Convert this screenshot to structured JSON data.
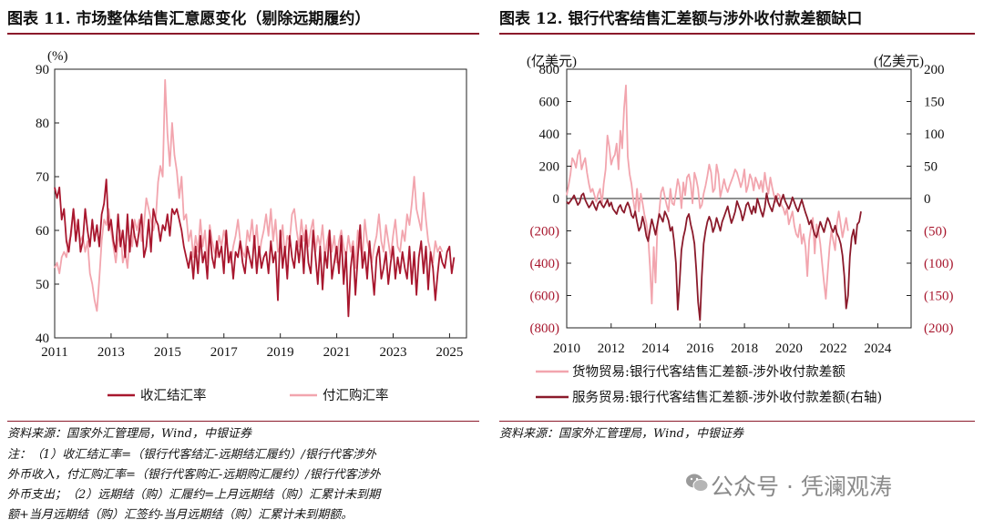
{
  "left_panel": {
    "title": "图表 11. 市场整体结售汇意愿变化（剔除远期履约）",
    "source": "资料来源：国家外汇管理局，Wind，中银证券",
    "notes": [
      "注：（1）收汇结汇率=（银行代客结汇-远期结汇履约）/银行代客涉外",
      "外币收入，付汇购汇率=（银行代客购汇-远期购汇履约）/银行代客涉外",
      "外币支出；（2）远期结（购）汇履约=上月远期结（购）汇累计未到期",
      "额+当月远期结（购）汇签约-当月远期结（购）汇累计未到期额。"
    ]
  },
  "right_panel": {
    "title": "图表 12. 银行代客结售汇差额与涉外收付款差额缺口",
    "source": "资料来源：国家外汇管理局，Wind，中银证券"
  },
  "watermark": {
    "text": "公众号 · 凭澜观涛",
    "icon": "wechat-icon"
  },
  "chart_data": [
    {
      "type": "line",
      "title": "图表 11. 市场整体结售汇意愿变化（剔除远期履约）",
      "unit_label": "(%)",
      "x_ticks": [
        "2011",
        "2013",
        "2015",
        "2017",
        "2019",
        "2021",
        "2023",
        "2025"
      ],
      "y_ticks": [
        40,
        50,
        60,
        70,
        80,
        90
      ],
      "ylim": [
        40,
        90
      ],
      "xlim": [
        2011,
        2025.6
      ],
      "grid": false,
      "legend_position": "bottom",
      "series": [
        {
          "name": "收汇结汇率",
          "color": "#a8172e",
          "x_start": 2011.0,
          "x_step": 0.0833,
          "values": [
            68,
            66,
            68,
            62,
            64,
            58,
            56,
            60,
            64,
            58,
            62,
            56,
            58,
            64,
            60,
            57,
            62,
            58,
            61,
            57,
            63,
            65,
            69.5,
            60,
            62,
            58,
            56,
            63,
            57,
            60,
            55,
            63,
            56,
            62,
            59,
            57,
            60,
            63,
            55,
            57,
            62,
            56,
            64,
            62,
            61,
            58,
            61,
            60,
            63,
            59,
            64,
            63,
            64,
            62,
            60,
            57,
            55,
            53,
            56,
            51,
            57,
            52,
            59,
            54,
            56,
            51,
            60,
            55,
            53,
            58,
            55,
            57,
            52,
            60,
            54,
            56,
            51,
            56,
            55,
            58,
            54,
            52,
            57,
            55,
            53,
            59,
            52,
            57,
            53,
            55,
            56,
            52,
            58,
            54,
            56,
            47,
            60,
            53,
            57,
            51,
            59,
            55,
            53,
            58,
            54,
            59,
            52,
            60,
            54,
            52,
            60,
            55,
            50,
            57,
            49,
            56,
            53,
            60,
            51,
            54,
            57,
            52,
            59,
            50,
            56,
            44,
            53,
            57,
            48,
            55,
            61,
            53,
            56,
            51,
            58,
            53,
            48,
            55,
            57,
            51,
            53,
            56,
            50,
            54,
            57,
            51,
            55,
            52,
            56,
            53,
            51,
            57,
            50,
            56,
            48,
            55,
            58,
            52,
            57,
            49,
            56,
            53,
            47,
            52,
            56,
            54,
            53,
            56,
            57,
            52,
            55
          ]
        },
        {
          "name": "付汇购汇率",
          "color": "#f2a5ae",
          "x_start": 2011.0,
          "x_step": 0.0833,
          "values": [
            53,
            54,
            52,
            55,
            56,
            55,
            58,
            59,
            64,
            61,
            60,
            58,
            59,
            56,
            58,
            52,
            50,
            47,
            45,
            51,
            58,
            62,
            61,
            64,
            60,
            57,
            54,
            58,
            60,
            54,
            56,
            53,
            59,
            57,
            62,
            60,
            62,
            58,
            61,
            66,
            64,
            62,
            60,
            62,
            69,
            72,
            70,
            88,
            78,
            72,
            80,
            74,
            71,
            66,
            70,
            62,
            63,
            58,
            60,
            55,
            59,
            56,
            62,
            57,
            60,
            54,
            61,
            58,
            56,
            55,
            59,
            57,
            60,
            58,
            56,
            54,
            57,
            59,
            62,
            58,
            56,
            55,
            60,
            58,
            62,
            57,
            61,
            55,
            58,
            60,
            63,
            59,
            64,
            58,
            62,
            56,
            57,
            61,
            55,
            59,
            58,
            63,
            64,
            60,
            57,
            62,
            58,
            61,
            57,
            60,
            62,
            56,
            59,
            57,
            61,
            55,
            58,
            60,
            56,
            59,
            54,
            58,
            60,
            57,
            55,
            59,
            56,
            58,
            53,
            60,
            57,
            55,
            62,
            58,
            56,
            54,
            57,
            59,
            63,
            58,
            56,
            61,
            58,
            55,
            59,
            62,
            57,
            56,
            60,
            58,
            63,
            61,
            65,
            70,
            64,
            62,
            60,
            67,
            62,
            58,
            56,
            54,
            58,
            56,
            57,
            56
          ]
        }
      ]
    },
    {
      "type": "line",
      "title": "图表 12. 银行代客结售汇差额与涉外收付款差额缺口",
      "ylabel_left": "(亿美元)",
      "ylabel_right": "(亿美元)",
      "x_ticks": [
        "2010",
        "2012",
        "2014",
        "2016",
        "2018",
        "2020",
        "2022",
        "2024"
      ],
      "left_ticks": [
        "800",
        "600",
        "400",
        "200",
        "0",
        "(200)",
        "(400)",
        "(600)",
        "(800)"
      ],
      "right_ticks": [
        "200",
        "150",
        "100",
        "50",
        "0",
        "(50)",
        "(100)",
        "(150)",
        "(200)"
      ],
      "ylim_left": [
        -800,
        800
      ],
      "ylim_right": [
        -200,
        200
      ],
      "xlim": [
        2010,
        2025.5
      ],
      "grid": false,
      "legend_position": "bottom",
      "series": [
        {
          "name": "货物贸易:银行代客结售汇差额-涉外收付款差额",
          "axis": "left",
          "color": "#f2a5ae",
          "x_start": 2010.0,
          "x_step": 0.0833,
          "values": [
            20,
            80,
            150,
            250,
            230,
            190,
            270,
            300,
            180,
            220,
            250,
            160,
            90,
            40,
            60,
            20,
            -20,
            30,
            60,
            -40,
            90,
            180,
            390,
            320,
            210,
            250,
            270,
            340,
            180,
            420,
            310,
            560,
            700,
            260,
            150,
            90,
            -10,
            -90,
            60,
            -80,
            30,
            -30,
            -100,
            -150,
            -240,
            -420,
            -650,
            -300,
            -520,
            -180,
            -80,
            40,
            70,
            10,
            -40,
            -80,
            60,
            -30,
            -40,
            40,
            120,
            70,
            -60,
            100,
            20,
            130,
            150,
            90,
            -30,
            160,
            120,
            60,
            -60,
            -40,
            30,
            80,
            140,
            210,
            160,
            40,
            60,
            210,
            150,
            10,
            60,
            120,
            70,
            40,
            80,
            110,
            140,
            180,
            160,
            120,
            70,
            110,
            180,
            40,
            80,
            150,
            120,
            50,
            130,
            100,
            60,
            110,
            40,
            160,
            80,
            30,
            130,
            70,
            20,
            -20,
            30,
            20,
            -40,
            -60,
            -100,
            -60,
            -160,
            -120,
            -80,
            -170,
            -220,
            -240,
            -160,
            -280,
            -220,
            -300,
            -480,
            -260,
            -180,
            -120,
            -340,
            -160,
            -200,
            -280,
            -400,
            -520,
            -620,
            -460,
            -300,
            -200,
            -260,
            -320,
            -150,
            -80,
            -160,
            -240,
            -180,
            -120,
            -200
          ]
        },
        {
          "name": "服务贸易:银行代客结售汇差额-涉外收付款差额(右轴)",
          "axis": "right",
          "color": "#8b1a2b",
          "x_start": 2010.0,
          "x_step": 0.0833,
          "values": [
            -5,
            -8,
            -4,
            0,
            5,
            -3,
            -10,
            -6,
            5,
            8,
            -2,
            -8,
            -14,
            -10,
            -4,
            -12,
            -18,
            -8,
            -4,
            -10,
            -14,
            -8,
            -2,
            -12,
            -6,
            -16,
            -20,
            -24,
            -14,
            -10,
            -18,
            -22,
            -12,
            -6,
            -14,
            -26,
            -30,
            -20,
            -36,
            -50,
            -44,
            -28,
            -40,
            -58,
            -66,
            -48,
            -32,
            -44,
            -56,
            -40,
            -24,
            -30,
            -36,
            -20,
            -26,
            -34,
            -50,
            -44,
            -66,
            -100,
            -172,
            -130,
            -80,
            -60,
            -48,
            -30,
            -24,
            -40,
            -52,
            -70,
            -110,
            -160,
            -188,
            -120,
            -70,
            -50,
            -36,
            -28,
            -36,
            -52,
            -44,
            -30,
            -40,
            -50,
            -36,
            -28,
            -20,
            -12,
            -26,
            -38,
            -30,
            -20,
            -4,
            -12,
            -20,
            -34,
            -24,
            -10,
            -6,
            -16,
            -24,
            -12,
            -22,
            0,
            -10,
            -20,
            -28,
            -14,
            8,
            -6,
            -14,
            -20,
            -8,
            4,
            -6,
            -12,
            -2,
            6,
            -4,
            -10,
            -16,
            -8,
            2,
            -6,
            -14,
            -20,
            -10,
            -2,
            -12,
            -22,
            -30,
            -40,
            -34,
            -46,
            -56,
            -60,
            -48,
            -36,
            -44,
            -52,
            -40,
            -30,
            -36,
            -46,
            -52,
            -42,
            -54,
            -60,
            -70,
            -88,
            -120,
            -170,
            -150,
            -90,
            -60,
            -48,
            -70,
            -40,
            -36,
            -20
          ]
        }
      ]
    }
  ]
}
